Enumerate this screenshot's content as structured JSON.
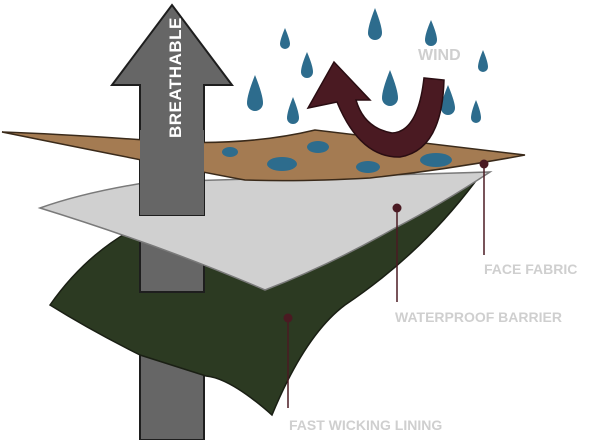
{
  "labels": {
    "breathable": "BREATHABLE",
    "wind": "WIND",
    "face_fabric": "FACE FABRIC",
    "waterproof_barrier": "WATERPROOF BARRIER",
    "fast_wicking_lining": "FAST WICKING LINING"
  },
  "colors": {
    "arrow_gray": "#666666",
    "arrow_outline": "#1e1e1e",
    "face_fabric_tan": "#a47b52",
    "membrane_light_gray": "#d0d0d0",
    "lining_dark_green": "#2c3a22",
    "rain_blue": "#2d6c8d",
    "wind_arrow_maroon": "#4a1a22",
    "callout_line": "#4a1a22",
    "label_light_gray": "#cfcfcf"
  }
}
